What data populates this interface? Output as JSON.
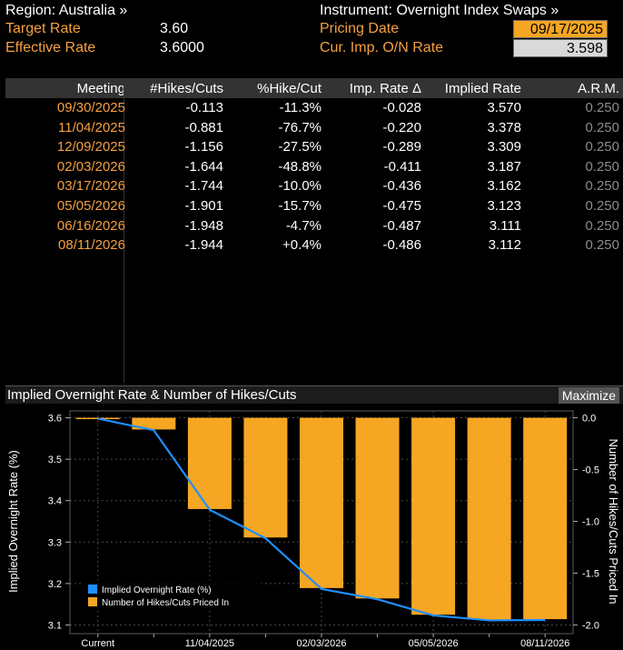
{
  "header": {
    "region": "Region: Australia »",
    "instrument": "Instrument: Overnight Index Swaps »",
    "target_label": "Target Rate",
    "target_value": "3.60",
    "effective_label": "Effective Rate",
    "effective_value": "3.6000",
    "pricing_label": "Pricing Date",
    "pricing_value": "09/17/2025",
    "cur_label": "Cur. Imp. O/N Rate",
    "cur_value": "3.598"
  },
  "table": {
    "columns": [
      "Meeting",
      "#Hikes/Cuts",
      "%Hike/Cut",
      "Imp. Rate Δ",
      "Implied Rate",
      "A.R.M."
    ],
    "rows": [
      [
        "09/30/2025",
        "-0.113",
        "-11.3%",
        "-0.028",
        "3.570",
        "0.250"
      ],
      [
        "11/04/2025",
        "-0.881",
        "-76.7%",
        "-0.220",
        "3.378",
        "0.250"
      ],
      [
        "12/09/2025",
        "-1.156",
        "-27.5%",
        "-0.289",
        "3.309",
        "0.250"
      ],
      [
        "02/03/2026",
        "-1.644",
        "-48.8%",
        "-0.411",
        "3.187",
        "0.250"
      ],
      [
        "03/17/2026",
        "-1.744",
        "-10.0%",
        "-0.436",
        "3.162",
        "0.250"
      ],
      [
        "05/05/2026",
        "-1.901",
        "-15.7%",
        "-0.475",
        "3.123",
        "0.250"
      ],
      [
        "06/16/2026",
        "-1.948",
        "-4.7%",
        "-0.487",
        "3.111",
        "0.250"
      ],
      [
        "08/11/2026",
        "-1.944",
        "+0.4%",
        "-0.486",
        "3.112",
        "0.250"
      ]
    ]
  },
  "chart_panel": {
    "title": "Implied Overnight Rate & Number of Hikes/Cuts",
    "maximize_label": "Maximize"
  },
  "chart_data": {
    "type": "bar",
    "categories": [
      "Current",
      "09/30/2025",
      "11/04/2025",
      "12/09/2025",
      "02/03/2026",
      "03/17/2026",
      "05/05/2026",
      "06/16/2026",
      "08/11/2026"
    ],
    "x_tick_labels": [
      "Current",
      "",
      "11/04/2025",
      "",
      "02/03/2026",
      "",
      "05/05/2026",
      "",
      "08/11/2026"
    ],
    "series": [
      {
        "name": "Implied Overnight Rate (%)",
        "type": "line",
        "axis": "left",
        "color": "#1f8fff",
        "values": [
          3.598,
          3.57,
          3.378,
          3.309,
          3.187,
          3.162,
          3.123,
          3.111,
          3.112
        ]
      },
      {
        "name": "Number of Hikes/Cuts Priced In",
        "type": "bar",
        "axis": "right",
        "color": "#f5a623",
        "values": [
          0.0,
          -0.113,
          -0.881,
          -1.156,
          -1.644,
          -1.744,
          -1.901,
          -1.948,
          -1.944
        ]
      }
    ],
    "ylabel_left": "Implied Overnight Rate (%)",
    "ylabel_right": "Number of Hikes/Cuts Priced In",
    "ylim_left": [
      3.09,
      3.61
    ],
    "ylim_right": [
      -2.04,
      0.04
    ],
    "yticks_left": [
      3.6,
      3.5,
      3.4,
      3.3,
      3.2,
      3.1
    ],
    "yticks_left_labels": [
      "3.6",
      "3.5",
      "3.4",
      "3.3",
      "3.2",
      "3.1"
    ],
    "yticks_right": [
      0.0,
      -0.5,
      -1.0,
      -1.5,
      -2.0
    ],
    "yticks_right_labels": [
      "0.0",
      "-0.5",
      "-1.0",
      "-1.5",
      "-2.0"
    ],
    "grid": true,
    "legend_position": "bottom-left"
  }
}
